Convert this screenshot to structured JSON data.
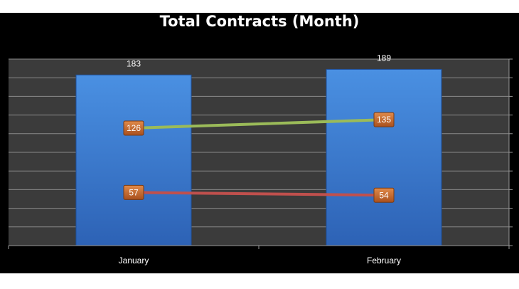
{
  "chart_data": {
    "type": "bar",
    "title": "Total Contracts (Month)",
    "xlabel": "",
    "ylabel": "",
    "categories": [
      "January",
      "February"
    ],
    "ylim": [
      0,
      200
    ],
    "grid": true,
    "series": [
      {
        "kind": "bar",
        "values": [
          183,
          189
        ],
        "color": "#3a7bd5"
      },
      {
        "kind": "line",
        "values": [
          126,
          135
        ],
        "color": "#9bbb59"
      },
      {
        "kind": "line",
        "values": [
          57,
          54
        ],
        "color": "#c0504d"
      }
    ],
    "label_fill_color": "#c0632a"
  }
}
